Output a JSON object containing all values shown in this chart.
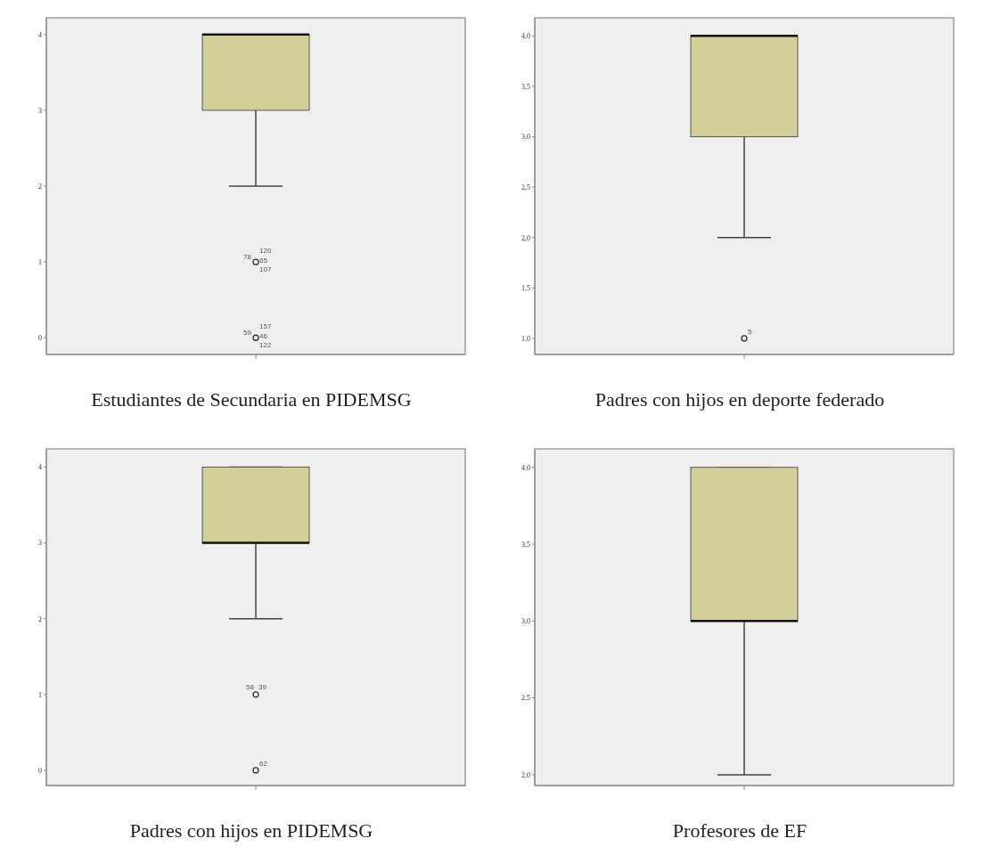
{
  "chart_data": [
    {
      "type": "box",
      "xlabel": "Estudiantes de Secundaria en PIDEMSG",
      "categories": [
        null
      ],
      "color": "#d3cf98",
      "ylim": [
        -0.22,
        4.22
      ],
      "yticks": [
        0,
        1,
        2,
        3,
        4
      ],
      "boxes": [
        {
          "low": 2,
          "q1": 3,
          "median": 4,
          "q3": 4,
          "high": 4,
          "outliers": [
            1,
            0
          ]
        }
      ],
      "annotations": [
        "120",
        "78",
        "65",
        "107",
        "157",
        "59",
        "46",
        "122"
      ]
    },
    {
      "type": "box",
      "xlabel": "Padres con hijos en deporte federado",
      "categories": [
        null
      ],
      "color": "#d3cf98",
      "ylim": [
        0.84,
        4.18
      ],
      "yticks": [
        {
          "value": 1,
          "label": "1,0"
        },
        {
          "value": 1.5,
          "label": "1,5"
        },
        {
          "value": 2,
          "label": "2,0"
        },
        {
          "value": 2.5,
          "label": "2,5"
        },
        {
          "value": 3,
          "label": "3,0"
        },
        {
          "value": 3.5,
          "label": "3,5"
        },
        {
          "value": 4,
          "label": "4,0"
        }
      ],
      "boxes": [
        {
          "low": 2,
          "q1": 3,
          "median": 4,
          "q3": 4,
          "high": 4,
          "outliers": [
            1
          ]
        }
      ],
      "annotations": [
        "5"
      ]
    },
    {
      "type": "box",
      "xlabel": "Padres con hijos en PIDEMSG",
      "categories": [
        null
      ],
      "color": "#d3cf98",
      "ylim": [
        -0.2,
        4.24
      ],
      "yticks": [
        0,
        1,
        2,
        3,
        4
      ],
      "boxes": [
        {
          "low": 2,
          "q1": 3,
          "median": 3,
          "q3": 4,
          "high": 4,
          "outliers": [
            1,
            0
          ]
        }
      ],
      "annotations": [
        "58",
        "39",
        "62"
      ]
    },
    {
      "type": "box",
      "xlabel": "Profesores de EF",
      "categories": [
        null
      ],
      "color": "#d3cf98",
      "ylim": [
        1.93,
        4.12
      ],
      "yticks": [
        {
          "value": 2,
          "label": "2,0"
        },
        {
          "value": 2.5,
          "label": "2,5"
        },
        {
          "value": 3,
          "label": "3,0"
        },
        {
          "value": 3.5,
          "label": "3,5"
        },
        {
          "value": 4,
          "label": "4,0"
        }
      ],
      "boxes": [
        {
          "low": 2,
          "q1": 3,
          "median": 3,
          "q3": 4,
          "high": 4
        }
      ]
    }
  ]
}
